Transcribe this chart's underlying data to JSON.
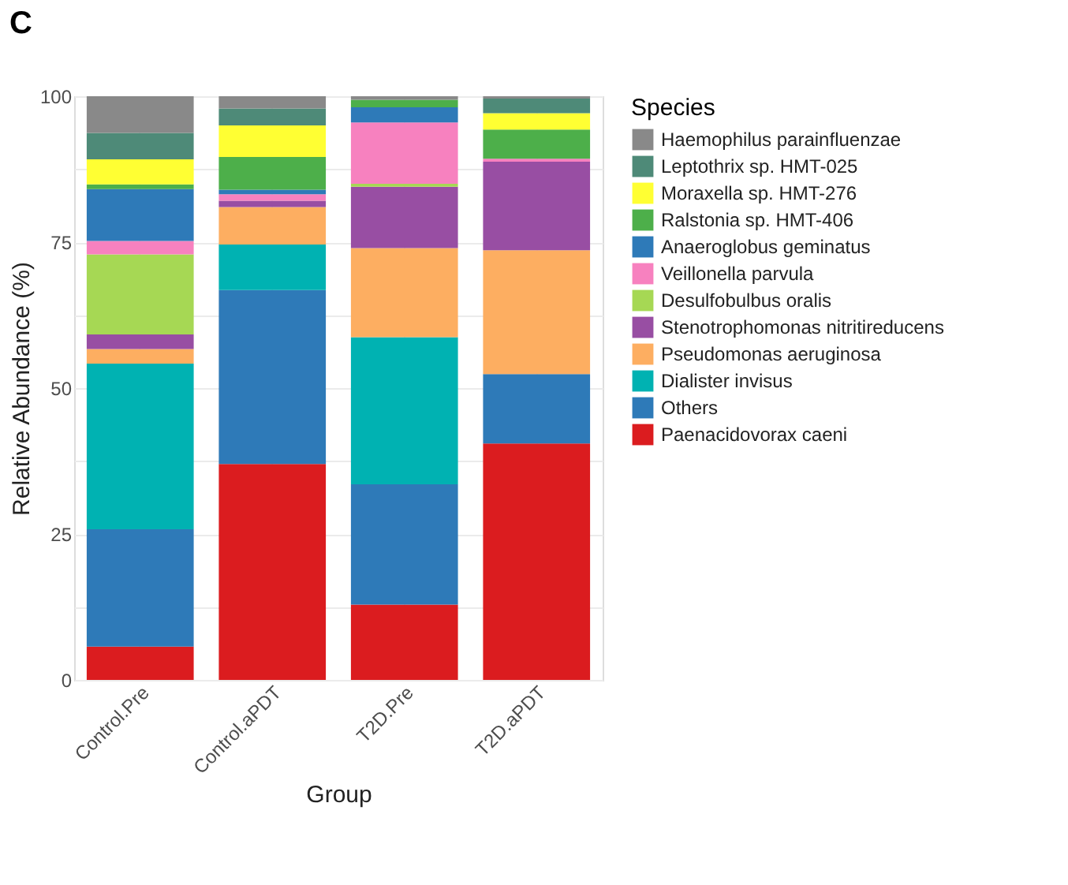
{
  "chart_data": {
    "type": "bar",
    "stacked": true,
    "title": "C",
    "xlabel": "Group",
    "ylabel": "Relative Abundance (%)",
    "legend_title": "Species",
    "legend": "right",
    "grid": true,
    "categories": [
      "Control.Pre",
      "Control.aPDT",
      "T2D.Pre",
      "T2D.aPDT"
    ],
    "ylim": [
      0,
      100
    ],
    "yticks": [
      0,
      {
        "value": 12.5,
        "label": null
      },
      25,
      {
        "value": 37.5,
        "label": null
      },
      50,
      {
        "value": 62.5,
        "label": null
      },
      75,
      {
        "value": 87.5,
        "label": null
      },
      100
    ],
    "series": [
      {
        "name": "Paenacidovorax caeni",
        "color": "#db1c1f",
        "values": [
          5.7,
          37.0,
          12.9,
          40.5
        ]
      },
      {
        "name": "Others",
        "color": "#2e7ab8",
        "values": [
          20.1,
          29.8,
          20.6,
          11.9
        ]
      },
      {
        "name": "Dialister invisus",
        "color": "#00b2b2",
        "values": [
          28.4,
          7.8,
          25.2,
          0
        ]
      },
      {
        "name": "Pseudomonas aeruginosa",
        "color": "#fdae61",
        "values": [
          2.5,
          6.4,
          15.3,
          21.2
        ]
      },
      {
        "name": "Stenotrophomonas nitritireducens",
        "color": "#984ea3",
        "values": [
          2.5,
          1.1,
          10.5,
          15.2
        ]
      },
      {
        "name": "Desulfobulbus oralis",
        "color": "#a6d854",
        "values": [
          13.7,
          0,
          0.5,
          0
        ]
      },
      {
        "name": "Veillonella parvula",
        "color": "#f781bf",
        "values": [
          2.3,
          1.1,
          10.5,
          0.5
        ]
      },
      {
        "name": "Anaeroglobus geminatus",
        "color": "#2e7ab8",
        "values": [
          8.9,
          0.8,
          2.6,
          0
        ]
      },
      {
        "name": "Ralstonia sp. HMT-406",
        "color": "#4daf4a",
        "values": [
          0.8,
          5.6,
          1.3,
          5.0
        ]
      },
      {
        "name": "Moraxella sp. HMT-276",
        "color": "#ffff33",
        "values": [
          4.3,
          5.4,
          0,
          2.8
        ]
      },
      {
        "name": "Leptothrix sp. HMT-025",
        "color": "#4e8a78",
        "values": [
          4.5,
          2.9,
          0,
          2.5
        ]
      },
      {
        "name": "Haemophilus parainfluenzae",
        "color": "#898989",
        "values": [
          6.3,
          2.1,
          0.6,
          0.4
        ]
      }
    ]
  }
}
